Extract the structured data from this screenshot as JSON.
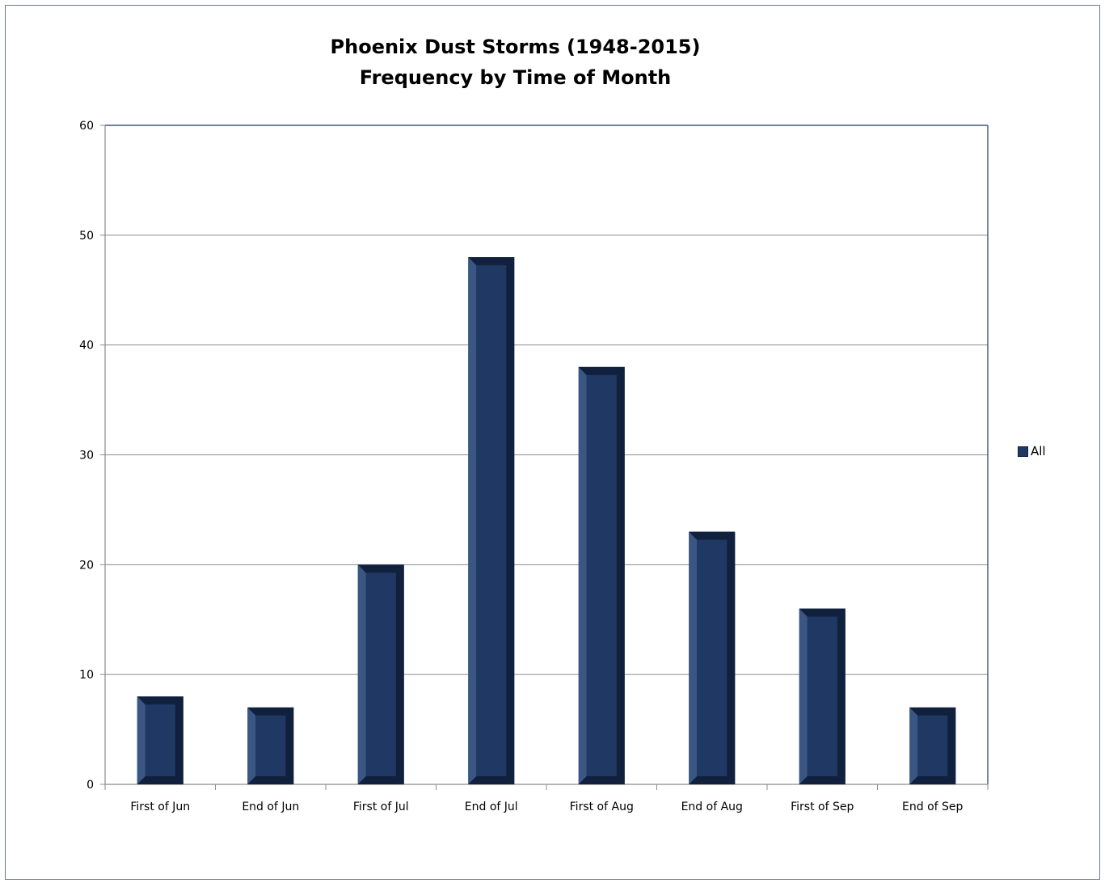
{
  "chart_data": {
    "type": "bar",
    "title": "Phoenix Dust Storms (1948-2015)",
    "subtitle": "Frequency by Time of Month",
    "categories": [
      "First of Jun",
      "End of Jun",
      "First of Jul",
      "End of Jul",
      "First of Aug",
      "End of Aug",
      "First of Sep",
      "End of Sep"
    ],
    "series": [
      {
        "name": "All",
        "values": [
          8,
          7,
          20,
          48,
          38,
          23,
          16,
          7
        ]
      }
    ],
    "xlabel": "",
    "ylabel": "",
    "ylim": [
      0,
      60
    ],
    "yticks": [
      0,
      10,
      20,
      30,
      40,
      50,
      60
    ],
    "grid": true,
    "legend_position": "right",
    "colors": {
      "bar": "#1f3864",
      "bar_dark": "#10203d",
      "bar_light": "#3a5683",
      "grid": "#8c8c8c",
      "axis": "#1f3864"
    }
  }
}
